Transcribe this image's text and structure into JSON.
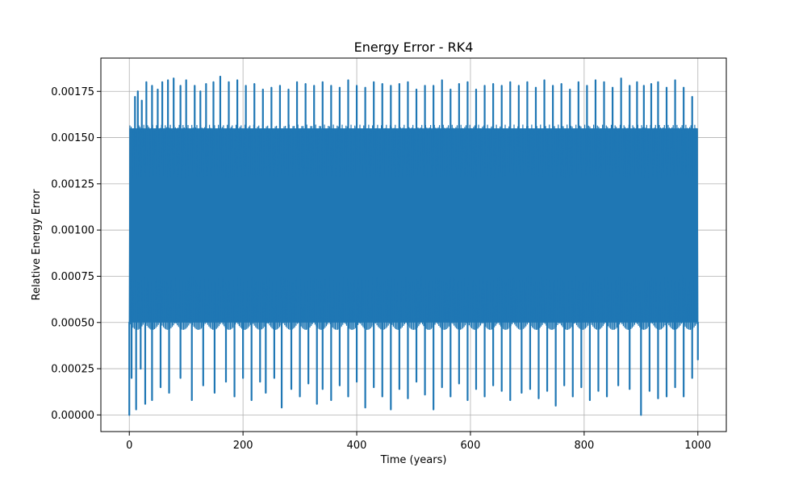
{
  "chart_data": {
    "type": "line",
    "title": "Energy Error - RK4",
    "xlabel": "Time (years)",
    "ylabel": "Relative Energy Error",
    "xlim": [
      -50,
      1050
    ],
    "ylim": [
      -9e-05,
      0.00193
    ],
    "xticks": [
      0,
      200,
      400,
      600,
      800,
      1000
    ],
    "xtick_labels": [
      "0",
      "200",
      "400",
      "600",
      "800",
      "1000"
    ],
    "yticks": [
      0,
      0.00025,
      0.0005,
      0.00075,
      0.001,
      0.00125,
      0.0015,
      0.00175
    ],
    "ytick_labels": [
      "0.00000",
      "0.00025",
      "0.00050",
      "0.00075",
      "0.00100",
      "0.00125",
      "0.00150",
      "0.00175"
    ],
    "grid": true,
    "series": [
      {
        "color": "#1f77b4",
        "x_range": [
          0,
          1000
        ],
        "band": {
          "low": 0.0005,
          "high": 0.00155
        },
        "upper_spikes": [
          [
            10,
            0.00172
          ],
          [
            15,
            0.00175
          ],
          [
            22,
            0.0017
          ],
          [
            30,
            0.0018
          ],
          [
            40,
            0.00178
          ],
          [
            50,
            0.00176
          ],
          [
            58,
            0.0018
          ],
          [
            68,
            0.00181
          ],
          [
            78,
            0.00182
          ],
          [
            90,
            0.00178
          ],
          [
            100,
            0.00181
          ],
          [
            115,
            0.00178
          ],
          [
            125,
            0.00175
          ],
          [
            135,
            0.00179
          ],
          [
            148,
            0.0018
          ],
          [
            160,
            0.00183
          ],
          [
            175,
            0.0018
          ],
          [
            190,
            0.00181
          ],
          [
            205,
            0.00178
          ],
          [
            220,
            0.00179
          ],
          [
            235,
            0.00176
          ],
          [
            250,
            0.00177
          ],
          [
            265,
            0.00178
          ],
          [
            280,
            0.00176
          ],
          [
            295,
            0.0018
          ],
          [
            310,
            0.00179
          ],
          [
            325,
            0.00178
          ],
          [
            340,
            0.0018
          ],
          [
            355,
            0.00178
          ],
          [
            370,
            0.00177
          ],
          [
            385,
            0.00181
          ],
          [
            400,
            0.00178
          ],
          [
            415,
            0.00177
          ],
          [
            430,
            0.0018
          ],
          [
            445,
            0.00179
          ],
          [
            460,
            0.00178
          ],
          [
            475,
            0.00179
          ],
          [
            490,
            0.0018
          ],
          [
            505,
            0.00176
          ],
          [
            520,
            0.00178
          ],
          [
            535,
            0.00178
          ],
          [
            550,
            0.00181
          ],
          [
            565,
            0.00176
          ],
          [
            580,
            0.00179
          ],
          [
            595,
            0.0018
          ],
          [
            610,
            0.00176
          ],
          [
            625,
            0.00178
          ],
          [
            640,
            0.00179
          ],
          [
            655,
            0.00178
          ],
          [
            670,
            0.0018
          ],
          [
            685,
            0.00178
          ],
          [
            700,
            0.0018
          ],
          [
            715,
            0.00177
          ],
          [
            730,
            0.00181
          ],
          [
            745,
            0.00178
          ],
          [
            760,
            0.00179
          ],
          [
            775,
            0.00176
          ],
          [
            790,
            0.0018
          ],
          [
            805,
            0.00178
          ],
          [
            820,
            0.00181
          ],
          [
            835,
            0.0018
          ],
          [
            850,
            0.00177
          ],
          [
            865,
            0.00182
          ],
          [
            880,
            0.00178
          ],
          [
            893,
            0.0018
          ],
          [
            905,
            0.00178
          ],
          [
            918,
            0.00179
          ],
          [
            930,
            0.0018
          ],
          [
            945,
            0.00177
          ],
          [
            960,
            0.00181
          ],
          [
            975,
            0.00177
          ],
          [
            990,
            0.00172
          ]
        ],
        "lower_spikes": [
          [
            0,
            0.0
          ],
          [
            4,
            0.0002
          ],
          [
            12,
            3e-05
          ],
          [
            20,
            0.00025
          ],
          [
            28,
            6e-05
          ],
          [
            40,
            8e-05
          ],
          [
            55,
            0.00015
          ],
          [
            70,
            0.00012
          ],
          [
            90,
            0.0002
          ],
          [
            110,
            8e-05
          ],
          [
            130,
            0.00016
          ],
          [
            150,
            0.00012
          ],
          [
            170,
            0.00018
          ],
          [
            185,
            0.0001
          ],
          [
            200,
            0.0002
          ],
          [
            215,
            8e-05
          ],
          [
            230,
            0.00018
          ],
          [
            240,
            0.00012
          ],
          [
            255,
            0.0002
          ],
          [
            268,
            4e-05
          ],
          [
            285,
            0.00014
          ],
          [
            300,
            0.0001
          ],
          [
            315,
            0.00017
          ],
          [
            330,
            6e-05
          ],
          [
            340,
            0.00014
          ],
          [
            355,
            8e-05
          ],
          [
            370,
            0.00016
          ],
          [
            385,
            0.0001
          ],
          [
            400,
            0.00018
          ],
          [
            415,
            4e-05
          ],
          [
            430,
            0.00015
          ],
          [
            445,
            0.0001
          ],
          [
            460,
            3e-05
          ],
          [
            475,
            0.00014
          ],
          [
            490,
            9e-05
          ],
          [
            505,
            0.00018
          ],
          [
            520,
            0.00011
          ],
          [
            535,
            3e-05
          ],
          [
            550,
            0.00015
          ],
          [
            565,
            0.0001
          ],
          [
            580,
            0.00017
          ],
          [
            595,
            8e-05
          ],
          [
            610,
            0.00014
          ],
          [
            625,
            0.0001
          ],
          [
            640,
            0.00016
          ],
          [
            655,
            0.00013
          ],
          [
            670,
            8e-05
          ],
          [
            690,
            0.00012
          ],
          [
            705,
            0.00014
          ],
          [
            720,
            9e-05
          ],
          [
            735,
            0.00013
          ],
          [
            750,
            5e-05
          ],
          [
            765,
            0.00016
          ],
          [
            780,
            0.0001
          ],
          [
            795,
            0.00015
          ],
          [
            810,
            8e-05
          ],
          [
            825,
            0.00013
          ],
          [
            840,
            0.0001
          ],
          [
            860,
            0.00016
          ],
          [
            880,
            0.00014
          ],
          [
            900,
            0.0
          ],
          [
            915,
            0.00013
          ],
          [
            930,
            9e-05
          ],
          [
            945,
            0.0001
          ],
          [
            960,
            0.00015
          ],
          [
            975,
            0.0001
          ],
          [
            990,
            0.0002
          ],
          [
            1000,
            0.0003
          ]
        ]
      }
    ]
  }
}
